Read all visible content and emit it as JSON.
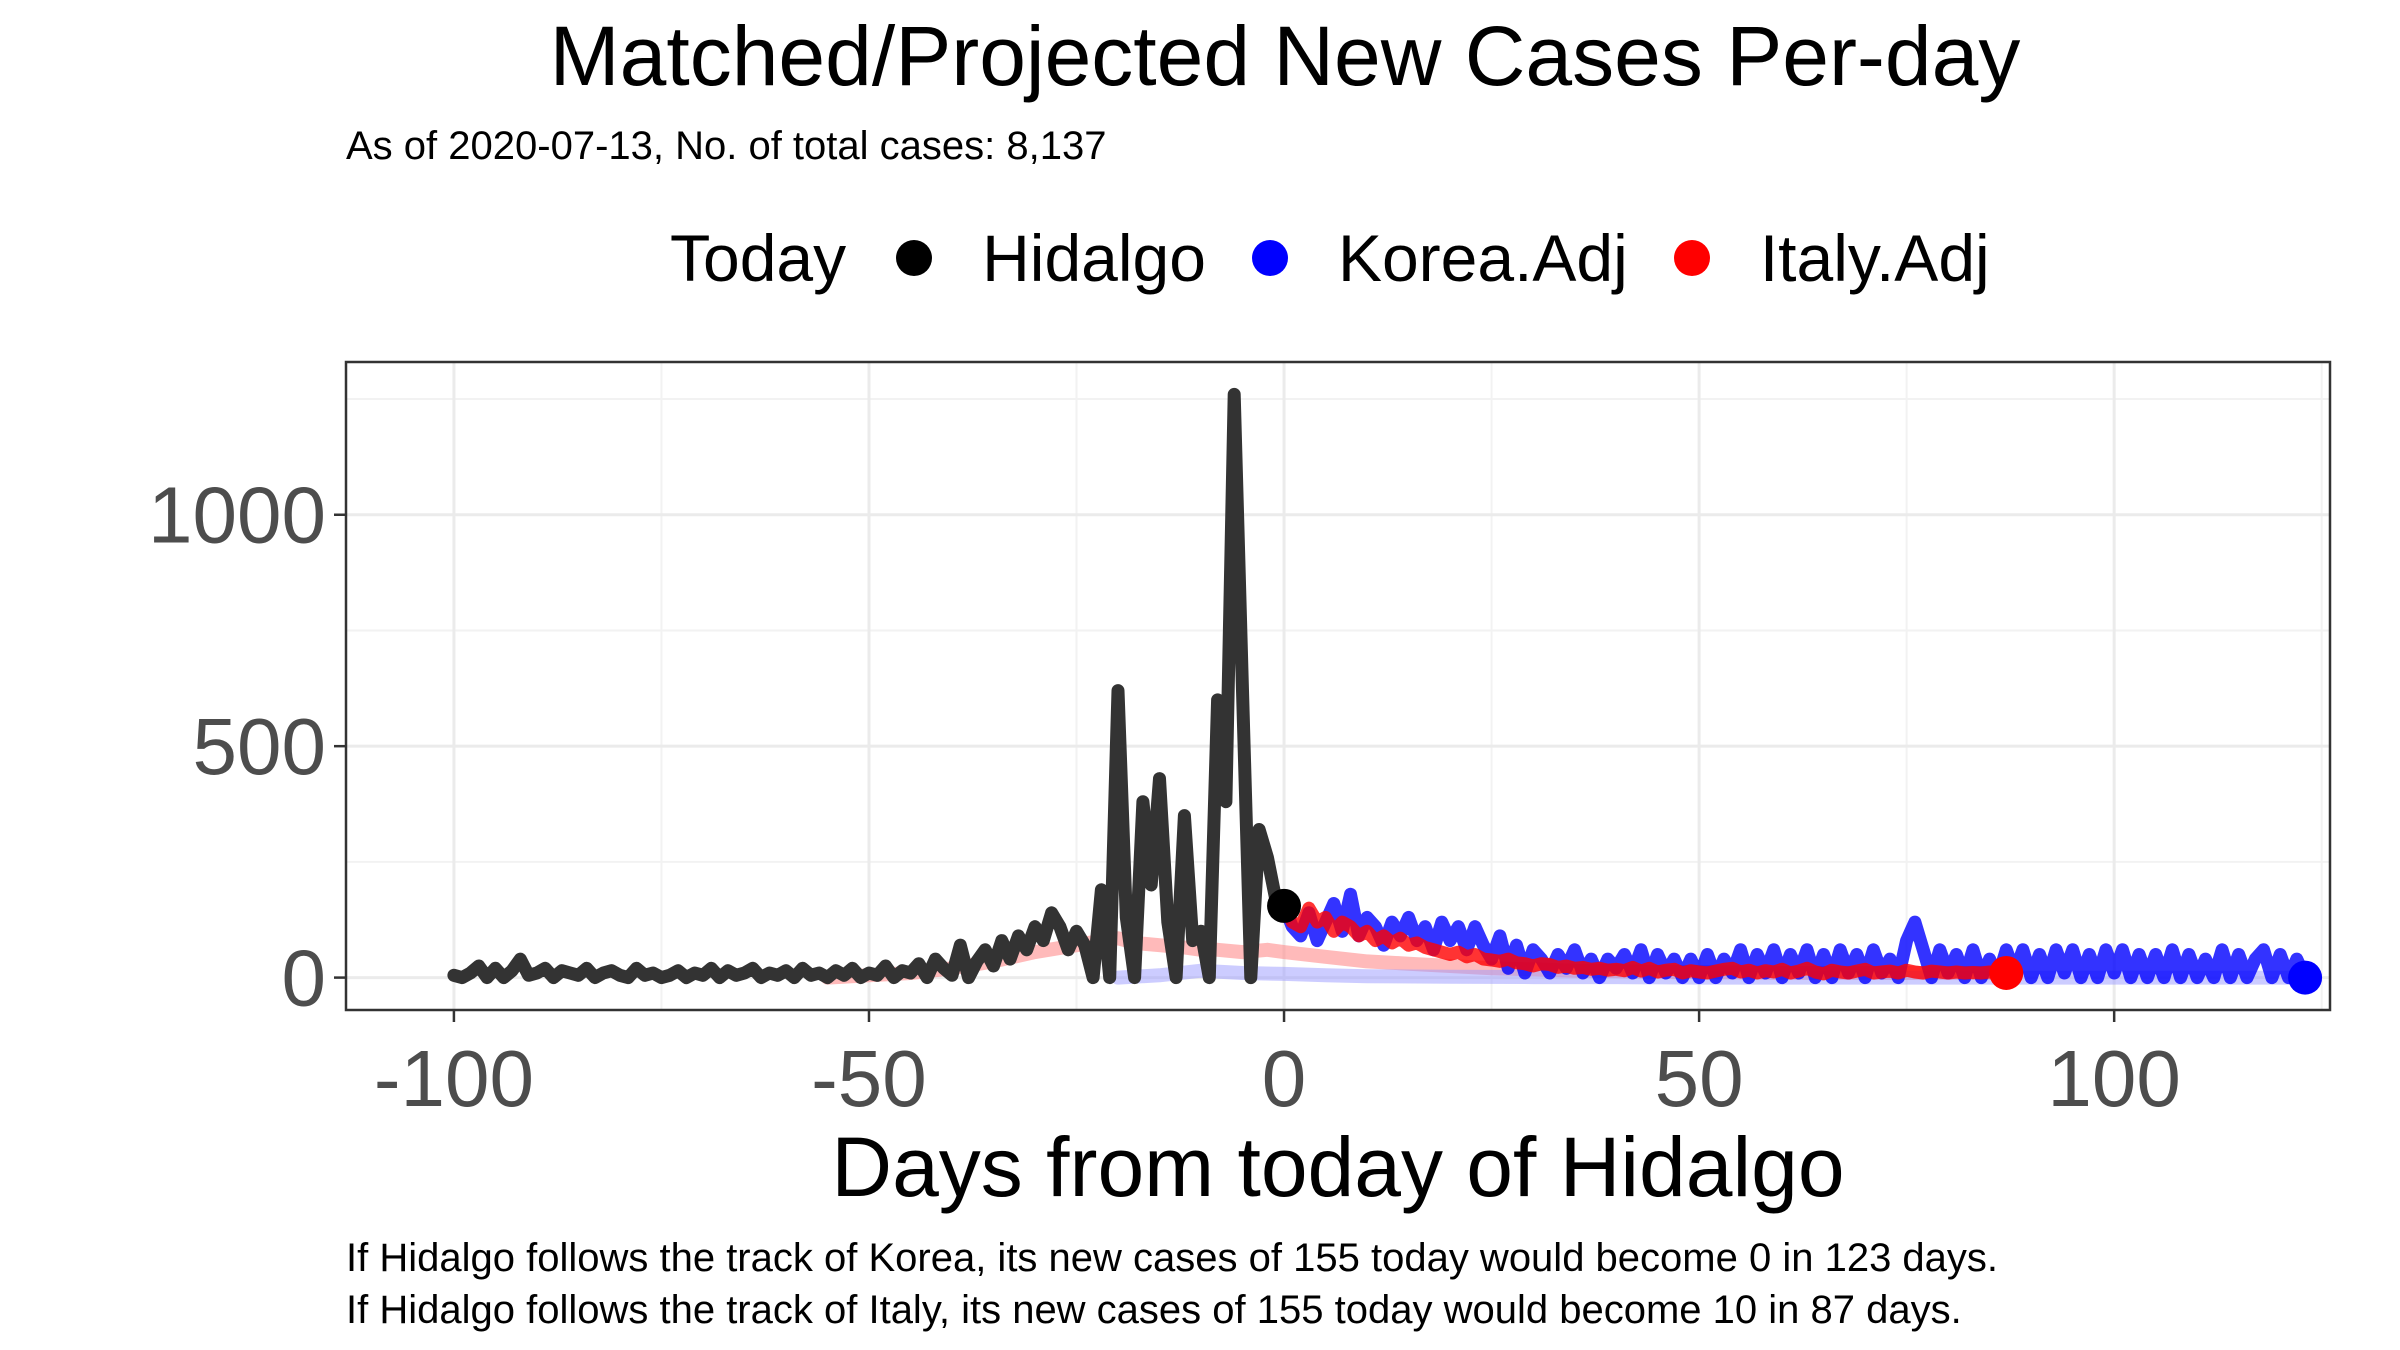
{
  "chart_data": {
    "type": "line",
    "title": "Matched/Projected New Cases Per-day",
    "subtitle": "As of 2020-07-13, No. of total cases: 8,137",
    "xlabel": "Days from today of Hidalgo",
    "ylabel": "",
    "xlim": [
      -113,
      126
    ],
    "ylim": [
      -70,
      1330
    ],
    "x_ticks": [
      -100,
      -50,
      0,
      50,
      100
    ],
    "x_tick_labels": [
      "-100",
      "-50",
      "0",
      "50",
      "100"
    ],
    "y_ticks": [
      0,
      500,
      1000
    ],
    "y_tick_labels": [
      "0",
      "500",
      "1000"
    ],
    "grid": true,
    "legend": {
      "title": "Today",
      "position": "top",
      "items": [
        {
          "label": "Hidalgo",
          "color": "#000000"
        },
        {
          "label": "Korea.Adj",
          "color": "#0000ff"
        },
        {
          "label": "Italy.Adj",
          "color": "#ff0000"
        }
      ]
    },
    "series": [
      {
        "name": "Hidalgo",
        "color": "#333333",
        "x": [
          -100,
          -99,
          -98,
          -97,
          -96,
          -95,
          -94,
          -93,
          -92,
          -91,
          -90,
          -89,
          -88,
          -87,
          -86,
          -85,
          -84,
          -83,
          -82,
          -81,
          -80,
          -79,
          -78,
          -77,
          -76,
          -75,
          -74,
          -73,
          -72,
          -71,
          -70,
          -69,
          -68,
          -67,
          -66,
          -65,
          -64,
          -63,
          -62,
          -61,
          -60,
          -59,
          -58,
          -57,
          -56,
          -55,
          -54,
          -53,
          -52,
          -51,
          -50,
          -49,
          -48,
          -47,
          -46,
          -45,
          -44,
          -43,
          -42,
          -41,
          -40,
          -39,
          -38,
          -37,
          -36,
          -35,
          -34,
          -33,
          -32,
          -31,
          -30,
          -29,
          -28,
          -27,
          -26,
          -25,
          -24,
          -23,
          -22,
          -21,
          -20,
          -19,
          -18,
          -17,
          -16,
          -15,
          -14,
          -13,
          -12,
          -11,
          -10,
          -9,
          -8,
          -7,
          -6,
          -5,
          -4,
          -3,
          -2,
          -1,
          0
        ],
        "y": [
          5,
          0,
          10,
          25,
          0,
          20,
          0,
          15,
          40,
          5,
          10,
          20,
          0,
          15,
          10,
          5,
          20,
          0,
          10,
          15,
          5,
          0,
          20,
          5,
          10,
          0,
          5,
          15,
          0,
          10,
          5,
          20,
          0,
          15,
          5,
          10,
          20,
          0,
          10,
          5,
          15,
          0,
          20,
          5,
          10,
          0,
          15,
          5,
          20,
          0,
          10,
          5,
          25,
          0,
          15,
          10,
          30,
          0,
          40,
          20,
          5,
          70,
          0,
          35,
          60,
          25,
          80,
          40,
          90,
          60,
          110,
          80,
          140,
          110,
          60,
          100,
          70,
          0,
          190,
          0,
          620,
          130,
          0,
          380,
          200,
          430,
          120,
          0,
          350,
          80,
          100,
          0,
          600,
          380,
          1260,
          620,
          0,
          320,
          260,
          170,
          155
        ]
      },
      {
        "name": "Korea.Adj",
        "color": "#0000ff",
        "x": [
          0,
          1,
          2,
          3,
          4,
          5,
          6,
          7,
          8,
          9,
          10,
          11,
          12,
          13,
          14,
          15,
          16,
          17,
          18,
          19,
          20,
          21,
          22,
          23,
          24,
          25,
          26,
          27,
          28,
          29,
          30,
          31,
          32,
          33,
          34,
          35,
          36,
          37,
          38,
          39,
          40,
          41,
          42,
          43,
          44,
          45,
          46,
          47,
          48,
          49,
          50,
          51,
          52,
          53,
          54,
          55,
          56,
          57,
          58,
          59,
          60,
          61,
          62,
          63,
          64,
          65,
          66,
          67,
          68,
          69,
          70,
          71,
          72,
          73,
          74,
          75,
          76,
          77,
          78,
          79,
          80,
          81,
          82,
          83,
          84,
          85,
          86,
          87,
          88,
          89,
          90,
          91,
          92,
          93,
          94,
          95,
          96,
          97,
          98,
          99,
          100,
          101,
          102,
          103,
          104,
          105,
          106,
          107,
          108,
          109,
          110,
          111,
          112,
          113,
          114,
          115,
          116,
          117,
          118,
          119,
          120,
          121,
          122,
          123
        ],
        "y": [
          155,
          110,
          90,
          140,
          80,
          120,
          160,
          100,
          180,
          90,
          130,
          110,
          70,
          120,
          90,
          130,
          80,
          110,
          60,
          120,
          80,
          110,
          60,
          110,
          70,
          40,
          90,
          20,
          70,
          10,
          60,
          40,
          10,
          50,
          20,
          60,
          10,
          40,
          0,
          40,
          20,
          50,
          10,
          60,
          0,
          50,
          10,
          40,
          0,
          40,
          0,
          50,
          0,
          40,
          10,
          60,
          0,
          50,
          10,
          60,
          0,
          50,
          10,
          60,
          0,
          50,
          0,
          60,
          10,
          50,
          0,
          60,
          10,
          40,
          0,
          80,
          120,
          60,
          0,
          60,
          10,
          50,
          0,
          60,
          0,
          40,
          0,
          60,
          10,
          60,
          0,
          50,
          0,
          60,
          10,
          60,
          0,
          50,
          0,
          60,
          10,
          60,
          0,
          50,
          0,
          50,
          0,
          60,
          0,
          50,
          0,
          40,
          0,
          60,
          0,
          50,
          0,
          40,
          60,
          0,
          50,
          0,
          40,
          0
        ]
      },
      {
        "name": "Italy.Adj",
        "color": "#ff0000",
        "x": [
          0,
          1,
          2,
          3,
          4,
          5,
          6,
          7,
          8,
          9,
          10,
          11,
          12,
          13,
          14,
          15,
          16,
          17,
          18,
          19,
          20,
          21,
          22,
          23,
          24,
          25,
          26,
          27,
          28,
          29,
          30,
          31,
          32,
          33,
          34,
          35,
          36,
          37,
          38,
          39,
          40,
          41,
          42,
          43,
          44,
          45,
          46,
          47,
          48,
          49,
          50,
          51,
          52,
          53,
          54,
          55,
          56,
          57,
          58,
          59,
          60,
          61,
          62,
          63,
          64,
          65,
          66,
          67,
          68,
          69,
          70,
          71,
          72,
          73,
          74,
          75,
          76,
          77,
          78,
          79,
          80,
          81,
          82,
          83,
          84,
          85,
          86,
          87
        ],
        "y": [
          155,
          120,
          110,
          150,
          120,
          130,
          100,
          120,
          110,
          90,
          100,
          80,
          90,
          75,
          85,
          70,
          75,
          65,
          60,
          55,
          50,
          55,
          45,
          50,
          40,
          38,
          35,
          40,
          32,
          30,
          25,
          30,
          28,
          22,
          25,
          20,
          22,
          18,
          20,
          16,
          18,
          15,
          22,
          14,
          20,
          12,
          16,
          18,
          10,
          15,
          12,
          10,
          14,
          18,
          20,
          12,
          16,
          10,
          15,
          12,
          18,
          10,
          14,
          20,
          12,
          8,
          16,
          12,
          10,
          14,
          18,
          10,
          12,
          14,
          10,
          16,
          12,
          10,
          14,
          12,
          10,
          12,
          10,
          11,
          10,
          12,
          10,
          10
        ]
      },
      {
        "name": "",
        "color": "#ff8c8c",
        "x": [
          -55,
          -50,
          -45,
          -40,
          -35,
          -30,
          -25,
          -22,
          -20,
          -18,
          -15,
          -12,
          -10,
          -8,
          -5,
          -2,
          0,
          5,
          10,
          15,
          20,
          25,
          30,
          35,
          40,
          45,
          50,
          55,
          60,
          65,
          70,
          75,
          80,
          85,
          87
        ],
        "y": [
          0,
          5,
          10,
          20,
          35,
          55,
          70,
          80,
          85,
          75,
          70,
          65,
          60,
          60,
          55,
          60,
          55,
          45,
          35,
          30,
          25,
          20,
          18,
          15,
          14,
          12,
          12,
          11,
          10,
          10,
          10,
          10,
          10,
          10,
          10
        ]
      },
      {
        "name": "",
        "color": "#9999ff",
        "x": [
          -20,
          -15,
          -10,
          -5,
          0,
          5,
          10,
          20,
          30,
          40,
          50,
          60,
          70,
          80,
          90,
          100,
          110,
          120,
          123
        ],
        "y": [
          0,
          5,
          15,
          10,
          8,
          5,
          3,
          2,
          1,
          1,
          0,
          0,
          0,
          0,
          0,
          0,
          0,
          0,
          0
        ]
      }
    ],
    "markers": [
      {
        "name": "Hidalgo",
        "x": 0,
        "y": 155,
        "color": "#000000"
      },
      {
        "name": "Korea.Adj",
        "x": 123,
        "y": 0,
        "color": "#0000ff"
      },
      {
        "name": "Italy.Adj",
        "x": 87,
        "y": 10,
        "color": "#ff0000"
      }
    ]
  },
  "footer": {
    "line1": "If Hidalgo follows the track of Korea, its new cases of 155 today would become 0 in 123 days.",
    "line2": "If Hidalgo follows the track of Italy, its new cases of 155 today would become 10 in 87 days."
  }
}
